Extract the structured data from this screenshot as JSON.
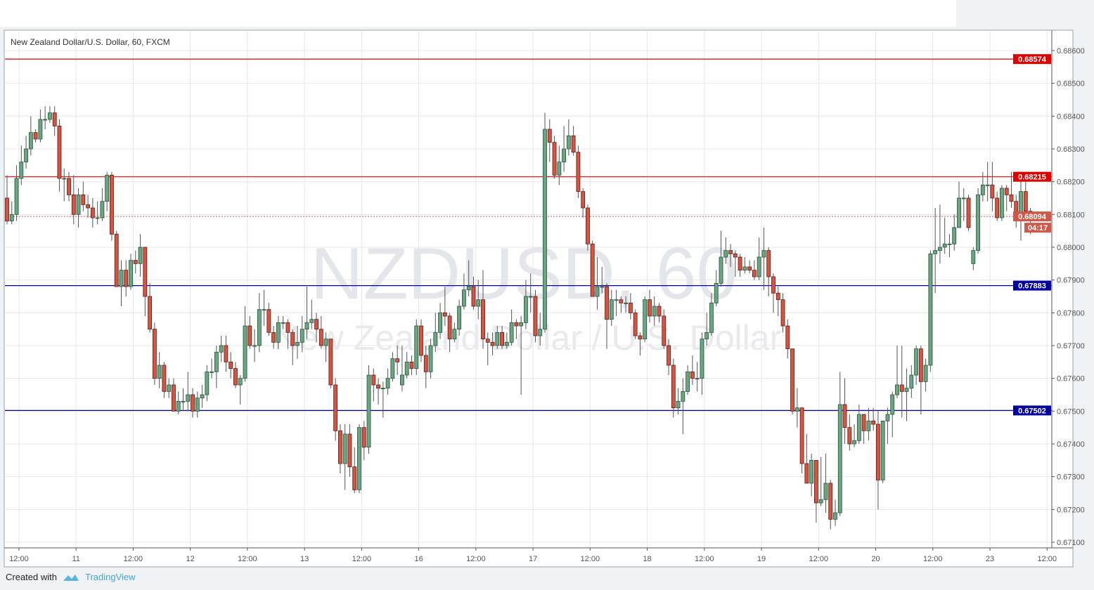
{
  "header": {
    "symbol_title": "New Zealand Dollar/U.S. Dollar, 60, FXCM"
  },
  "watermark": {
    "symbol": "NZDUSD, 60",
    "description": "New Zealand Dollar / U.S. Dollar"
  },
  "footer": {
    "created_with": "Created with",
    "brand": "TradingView"
  },
  "colors": {
    "up": "#6ba583",
    "up_border": "#225437",
    "down": "#d75442",
    "down_border": "#5b1a13",
    "resistance": "#e00000",
    "support": "#0000a0",
    "last_price": "#d0584a"
  },
  "chart_data": {
    "type": "candlestick",
    "timeframe": "60",
    "ylim": [
      0.6706,
      0.6864
    ],
    "grid": true,
    "y_ticks": [
      "0.68600",
      "0.68500",
      "0.68400",
      "0.68300",
      "0.68200",
      "0.68100",
      "0.68000",
      "0.67900",
      "0.67800",
      "0.67700",
      "0.67600",
      "0.67500",
      "0.67400",
      "0.67300",
      "0.67200",
      "0.67100"
    ],
    "x_ticks": [
      "12:00",
      "11",
      "12:00",
      "12",
      "12:00",
      "13",
      "12:00",
      "16",
      "12:00",
      "17",
      "12:00",
      "18",
      "12:00",
      "19",
      "12:00",
      "20",
      "12:00",
      "23",
      "12:00"
    ],
    "horizontal_lines": [
      {
        "value": 0.68574,
        "label": "0.68574",
        "kind": "resistance"
      },
      {
        "value": 0.68215,
        "label": "0.68215",
        "kind": "resistance"
      },
      {
        "value": 0.67883,
        "label": "0.67883",
        "kind": "support"
      },
      {
        "value": 0.67502,
        "label": "0.67502",
        "kind": "support"
      }
    ],
    "last_price": {
      "value": 0.68094,
      "label": "0.68094",
      "countdown": "04:17"
    },
    "ohlc": [
      [
        0.6815,
        0.6822,
        0.6807,
        0.6808
      ],
      [
        0.6808,
        0.6814,
        0.6807,
        0.681
      ],
      [
        0.681,
        0.6825,
        0.6808,
        0.6821
      ],
      [
        0.6821,
        0.6831,
        0.6819,
        0.6826
      ],
      [
        0.6826,
        0.6834,
        0.6824,
        0.683
      ],
      [
        0.683,
        0.684,
        0.6828,
        0.6835
      ],
      [
        0.6835,
        0.6836,
        0.6832,
        0.6833
      ],
      [
        0.6833,
        0.6842,
        0.6832,
        0.6839
      ],
      [
        0.6839,
        0.6843,
        0.6836,
        0.6839
      ],
      [
        0.6839,
        0.6843,
        0.6838,
        0.6841
      ],
      [
        0.6841,
        0.6843,
        0.6834,
        0.6837
      ],
      [
        0.6837,
        0.6839,
        0.6817,
        0.6821
      ],
      [
        0.6821,
        0.6824,
        0.6814,
        0.6821
      ],
      [
        0.6821,
        0.6823,
        0.6814,
        0.6816
      ],
      [
        0.6816,
        0.6822,
        0.6807,
        0.681
      ],
      [
        0.681,
        0.6818,
        0.6806,
        0.6816
      ],
      [
        0.6816,
        0.682,
        0.6811,
        0.6813
      ],
      [
        0.6813,
        0.6816,
        0.6809,
        0.6812
      ],
      [
        0.6812,
        0.6815,
        0.6806,
        0.6809
      ],
      [
        0.6809,
        0.6814,
        0.6807,
        0.6809
      ],
      [
        0.6809,
        0.6818,
        0.6808,
        0.6814
      ],
      [
        0.6814,
        0.6823,
        0.6811,
        0.6822
      ],
      [
        0.6822,
        0.6823,
        0.6802,
        0.6804
      ],
      [
        0.6804,
        0.6805,
        0.6788,
        0.6788
      ],
      [
        0.6788,
        0.6796,
        0.6782,
        0.6793
      ],
      [
        0.6793,
        0.6796,
        0.6785,
        0.6788
      ],
      [
        0.6788,
        0.6798,
        0.6787,
        0.6796
      ],
      [
        0.6796,
        0.6799,
        0.6792,
        0.6795
      ],
      [
        0.6795,
        0.6804,
        0.6791,
        0.68
      ],
      [
        0.68,
        0.68,
        0.6779,
        0.6785
      ],
      [
        0.6785,
        0.6789,
        0.6774,
        0.6775
      ],
      [
        0.6775,
        0.6777,
        0.6758,
        0.676
      ],
      [
        0.676,
        0.6768,
        0.6757,
        0.6764
      ],
      [
        0.6764,
        0.6765,
        0.6754,
        0.6756
      ],
      [
        0.6756,
        0.676,
        0.6754,
        0.6758
      ],
      [
        0.6758,
        0.676,
        0.675,
        0.675
      ],
      [
        0.675,
        0.6756,
        0.6749,
        0.6753
      ],
      [
        0.6753,
        0.6757,
        0.675,
        0.6753
      ],
      [
        0.6753,
        0.6762,
        0.675,
        0.6755
      ],
      [
        0.6755,
        0.6757,
        0.6748,
        0.675
      ],
      [
        0.675,
        0.6756,
        0.6748,
        0.6754
      ],
      [
        0.6754,
        0.6758,
        0.6751,
        0.6755
      ],
      [
        0.6755,
        0.6764,
        0.6753,
        0.6762
      ],
      [
        0.6762,
        0.6766,
        0.676,
        0.6762
      ],
      [
        0.6762,
        0.677,
        0.6757,
        0.6768
      ],
      [
        0.6768,
        0.6773,
        0.6765,
        0.677
      ],
      [
        0.677,
        0.6773,
        0.6762,
        0.6765
      ],
      [
        0.6765,
        0.6768,
        0.676,
        0.6763
      ],
      [
        0.6763,
        0.6765,
        0.6757,
        0.6758
      ],
      [
        0.6758,
        0.6761,
        0.6752,
        0.676
      ],
      [
        0.676,
        0.6782,
        0.6759,
        0.6776
      ],
      [
        0.6776,
        0.6779,
        0.6769,
        0.677
      ],
      [
        0.677,
        0.6775,
        0.6765,
        0.677
      ],
      [
        0.677,
        0.6786,
        0.6768,
        0.6781
      ],
      [
        0.6781,
        0.6787,
        0.6776,
        0.6781
      ],
      [
        0.6781,
        0.6783,
        0.6773,
        0.6774
      ],
      [
        0.6774,
        0.6776,
        0.6769,
        0.6771
      ],
      [
        0.6771,
        0.6779,
        0.6769,
        0.6777
      ],
      [
        0.6777,
        0.6779,
        0.6775,
        0.6777
      ],
      [
        0.6777,
        0.6778,
        0.6769,
        0.6774
      ],
      [
        0.6774,
        0.6775,
        0.6764,
        0.677
      ],
      [
        0.677,
        0.6776,
        0.6766,
        0.6771
      ],
      [
        0.6771,
        0.6779,
        0.6768,
        0.6775
      ],
      [
        0.6775,
        0.6788,
        0.6772,
        0.6777
      ],
      [
        0.6777,
        0.6784,
        0.6775,
        0.6778
      ],
      [
        0.6778,
        0.678,
        0.6771,
        0.6775
      ],
      [
        0.6775,
        0.6779,
        0.6769,
        0.677
      ],
      [
        0.677,
        0.6774,
        0.6765,
        0.6772
      ],
      [
        0.6772,
        0.6772,
        0.6757,
        0.6758
      ],
      [
        0.6758,
        0.676,
        0.6741,
        0.6744
      ],
      [
        0.6744,
        0.6746,
        0.6731,
        0.6734
      ],
      [
        0.6734,
        0.6746,
        0.6726,
        0.6743
      ],
      [
        0.6743,
        0.6746,
        0.673,
        0.6733
      ],
      [
        0.6733,
        0.6739,
        0.6725,
        0.6726
      ],
      [
        0.6726,
        0.6746,
        0.6725,
        0.6745
      ],
      [
        0.6745,
        0.6747,
        0.6735,
        0.6739
      ],
      [
        0.6739,
        0.6764,
        0.6737,
        0.6761
      ],
      [
        0.6761,
        0.6763,
        0.6753,
        0.6758
      ],
      [
        0.6758,
        0.676,
        0.6752,
        0.6757
      ],
      [
        0.6757,
        0.6759,
        0.6748,
        0.6757
      ],
      [
        0.6757,
        0.6763,
        0.6755,
        0.676
      ],
      [
        0.676,
        0.6768,
        0.6759,
        0.6766
      ],
      [
        0.6766,
        0.677,
        0.6761,
        0.6765
      ],
      [
        0.6758,
        0.677,
        0.6756,
        0.6761
      ],
      [
        0.6761,
        0.6768,
        0.676,
        0.6765
      ],
      [
        0.6765,
        0.6767,
        0.6761,
        0.6763
      ],
      [
        0.6763,
        0.6778,
        0.6761,
        0.6776
      ],
      [
        0.6776,
        0.6778,
        0.6765,
        0.6767
      ],
      [
        0.6767,
        0.677,
        0.6757,
        0.6762
      ],
      [
        0.6762,
        0.6772,
        0.676,
        0.677
      ],
      [
        0.677,
        0.678,
        0.6768,
        0.6774
      ],
      [
        0.6774,
        0.6783,
        0.6772,
        0.678
      ],
      [
        0.678,
        0.6788,
        0.6776,
        0.6779
      ],
      [
        0.6779,
        0.678,
        0.6768,
        0.6772
      ],
      [
        0.6772,
        0.6777,
        0.6771,
        0.6775
      ],
      [
        0.6775,
        0.6784,
        0.6773,
        0.6782
      ],
      [
        0.6782,
        0.6792,
        0.6781,
        0.6787
      ],
      [
        0.6787,
        0.6796,
        0.6785,
        0.6788
      ],
      [
        0.6788,
        0.6791,
        0.6781,
        0.6782
      ],
      [
        0.6782,
        0.679,
        0.6778,
        0.6784
      ],
      [
        0.6784,
        0.6793,
        0.6769,
        0.6772
      ],
      [
        0.6772,
        0.6774,
        0.6764,
        0.6771
      ],
      [
        0.6771,
        0.6774,
        0.6767,
        0.677
      ],
      [
        0.677,
        0.6776,
        0.6769,
        0.6774
      ],
      [
        0.6774,
        0.6776,
        0.6769,
        0.677
      ],
      [
        0.677,
        0.6774,
        0.6769,
        0.6771
      ],
      [
        0.6771,
        0.6781,
        0.677,
        0.6777
      ],
      [
        0.6777,
        0.6778,
        0.6772,
        0.6776
      ],
      [
        0.6776,
        0.6779,
        0.6755,
        0.6777
      ],
      [
        0.6777,
        0.679,
        0.6775,
        0.6785
      ],
      [
        0.6785,
        0.6792,
        0.678,
        0.6785
      ],
      [
        0.6785,
        0.6787,
        0.6771,
        0.6773
      ],
      [
        0.6773,
        0.678,
        0.677,
        0.6775
      ],
      [
        0.6775,
        0.6841,
        0.6774,
        0.6836
      ],
      [
        0.6836,
        0.6839,
        0.6826,
        0.6832
      ],
      [
        0.6832,
        0.6834,
        0.6821,
        0.6822
      ],
      [
        0.6822,
        0.6831,
        0.6819,
        0.6826
      ],
      [
        0.6826,
        0.6837,
        0.6823,
        0.683
      ],
      [
        0.683,
        0.6839,
        0.6828,
        0.6834
      ],
      [
        0.6834,
        0.6837,
        0.6828,
        0.6829
      ],
      [
        0.6829,
        0.6831,
        0.6815,
        0.6817
      ],
      [
        0.6817,
        0.6818,
        0.6809,
        0.6812
      ],
      [
        0.6812,
        0.6813,
        0.6799,
        0.6801
      ],
      [
        0.6801,
        0.6802,
        0.6785,
        0.6785
      ],
      [
        0.6785,
        0.6797,
        0.6781,
        0.6788
      ],
      [
        0.6788,
        0.6794,
        0.6786,
        0.6788
      ],
      [
        0.6788,
        0.6789,
        0.6769,
        0.6778
      ],
      [
        0.6778,
        0.6787,
        0.6776,
        0.6784
      ],
      [
        0.6784,
        0.6787,
        0.6779,
        0.6784
      ],
      [
        0.6784,
        0.6785,
        0.678,
        0.6783
      ],
      [
        0.6783,
        0.6785,
        0.678,
        0.6783
      ],
      [
        0.6783,
        0.6786,
        0.6778,
        0.678
      ],
      [
        0.678,
        0.6781,
        0.6772,
        0.6773
      ],
      [
        0.6773,
        0.6774,
        0.6767,
        0.6772
      ],
      [
        0.6772,
        0.6785,
        0.6771,
        0.6784
      ],
      [
        0.6784,
        0.6787,
        0.6777,
        0.6779
      ],
      [
        0.6779,
        0.6785,
        0.6776,
        0.6782
      ],
      [
        0.6782,
        0.6783,
        0.6777,
        0.6779
      ],
      [
        0.6779,
        0.6781,
        0.6769,
        0.677
      ],
      [
        0.677,
        0.6772,
        0.6761,
        0.6764
      ],
      [
        0.6764,
        0.6766,
        0.6748,
        0.6751
      ],
      [
        0.6751,
        0.6757,
        0.6749,
        0.6753
      ],
      [
        0.6753,
        0.676,
        0.6743,
        0.6756
      ],
      [
        0.6756,
        0.6764,
        0.6755,
        0.6762
      ],
      [
        0.6762,
        0.6767,
        0.6758,
        0.676
      ],
      [
        0.676,
        0.6765,
        0.6756,
        0.676
      ],
      [
        0.676,
        0.6774,
        0.6755,
        0.6772
      ],
      [
        0.6772,
        0.678,
        0.677,
        0.6774
      ],
      [
        0.6774,
        0.6786,
        0.6773,
        0.6783
      ],
      [
        0.6783,
        0.6793,
        0.6782,
        0.6789
      ],
      [
        0.6789,
        0.6805,
        0.6788,
        0.6797
      ],
      [
        0.6797,
        0.6803,
        0.6795,
        0.6799
      ],
      [
        0.6799,
        0.6801,
        0.6794,
        0.6798
      ],
      [
        0.6798,
        0.6799,
        0.6791,
        0.6797
      ],
      [
        0.6797,
        0.6798,
        0.6791,
        0.6793
      ],
      [
        0.6793,
        0.6797,
        0.6792,
        0.6794
      ],
      [
        0.6794,
        0.6796,
        0.6792,
        0.6793
      ],
      [
        0.6793,
        0.6796,
        0.679,
        0.6791
      ],
      [
        0.6791,
        0.6803,
        0.679,
        0.6797
      ],
      [
        0.6797,
        0.6806,
        0.6787,
        0.6799
      ],
      [
        0.6799,
        0.68,
        0.6785,
        0.6791
      ],
      [
        0.6791,
        0.6792,
        0.678,
        0.6786
      ],
      [
        0.6786,
        0.6788,
        0.6779,
        0.6784
      ],
      [
        0.6784,
        0.6786,
        0.6774,
        0.6776
      ],
      [
        0.6776,
        0.6778,
        0.6766,
        0.6769
      ],
      [
        0.6769,
        0.6769,
        0.6749,
        0.675
      ],
      [
        0.675,
        0.6757,
        0.6745,
        0.6751
      ],
      [
        0.6751,
        0.6751,
        0.6731,
        0.6734
      ],
      [
        0.6734,
        0.6743,
        0.6728,
        0.6728
      ],
      [
        0.6728,
        0.6737,
        0.6724,
        0.6735
      ],
      [
        0.6735,
        0.6735,
        0.6716,
        0.6722
      ],
      [
        0.6722,
        0.6736,
        0.6721,
        0.6723
      ],
      [
        0.6723,
        0.6737,
        0.6719,
        0.6728
      ],
      [
        0.6728,
        0.6729,
        0.6714,
        0.6717
      ],
      [
        0.6717,
        0.6723,
        0.6715,
        0.6719
      ],
      [
        0.6719,
        0.6762,
        0.6718,
        0.6752
      ],
      [
        0.6752,
        0.676,
        0.674,
        0.6745
      ],
      [
        0.6745,
        0.6749,
        0.6738,
        0.674
      ],
      [
        0.674,
        0.6746,
        0.6739,
        0.6741
      ],
      [
        0.6741,
        0.6752,
        0.674,
        0.6749
      ],
      [
        0.6749,
        0.6749,
        0.674,
        0.6744
      ],
      [
        0.6744,
        0.6751,
        0.6741,
        0.6747
      ],
      [
        0.6747,
        0.6751,
        0.6744,
        0.6746
      ],
      [
        0.6746,
        0.675,
        0.672,
        0.6729
      ],
      [
        0.6729,
        0.6747,
        0.6728,
        0.6747
      ],
      [
        0.6747,
        0.6751,
        0.674,
        0.6749
      ],
      [
        0.6749,
        0.6756,
        0.6742,
        0.6755
      ],
      [
        0.6755,
        0.677,
        0.6754,
        0.6758
      ],
      [
        0.6758,
        0.677,
        0.6748,
        0.6756
      ],
      [
        0.6756,
        0.6763,
        0.6747,
        0.6757
      ],
      [
        0.6757,
        0.6764,
        0.6754,
        0.6761
      ],
      [
        0.6761,
        0.677,
        0.6758,
        0.6769
      ],
      [
        0.6769,
        0.677,
        0.6749,
        0.6759
      ],
      [
        0.6759,
        0.6766,
        0.6756,
        0.6764
      ],
      [
        0.6764,
        0.6799,
        0.6762,
        0.6798
      ],
      [
        0.6798,
        0.6812,
        0.6786,
        0.6799
      ],
      [
        0.6799,
        0.6813,
        0.6795,
        0.68
      ],
      [
        0.68,
        0.6809,
        0.6798,
        0.6801
      ],
      [
        0.6801,
        0.6804,
        0.6797,
        0.6801
      ],
      [
        0.6801,
        0.681,
        0.6799,
        0.6806
      ],
      [
        0.6806,
        0.682,
        0.6806,
        0.6815
      ],
      [
        0.6815,
        0.6818,
        0.6808,
        0.6815
      ],
      [
        0.6815,
        0.6816,
        0.6805,
        0.6806
      ],
      [
        0.6795,
        0.68,
        0.6793,
        0.6799
      ],
      [
        0.6799,
        0.6818,
        0.6798,
        0.6816
      ],
      [
        0.6816,
        0.6823,
        0.6814,
        0.6819
      ],
      [
        0.6819,
        0.6826,
        0.6814,
        0.6819
      ],
      [
        0.6819,
        0.6826,
        0.6811,
        0.6815
      ],
      [
        0.6815,
        0.6817,
        0.6808,
        0.6809
      ],
      [
        0.6809,
        0.6819,
        0.6808,
        0.6818
      ],
      [
        0.6818,
        0.6819,
        0.6811,
        0.6816
      ],
      [
        0.6816,
        0.6823,
        0.6812,
        0.6814
      ],
      [
        0.6814,
        0.6816,
        0.6806,
        0.6809
      ],
      [
        0.6809,
        0.6823,
        0.6802,
        0.6817
      ],
      [
        0.6817,
        0.6823,
        0.681,
        0.6811
      ],
      [
        0.6811,
        0.6812,
        0.6804,
        0.6809
      ]
    ]
  }
}
